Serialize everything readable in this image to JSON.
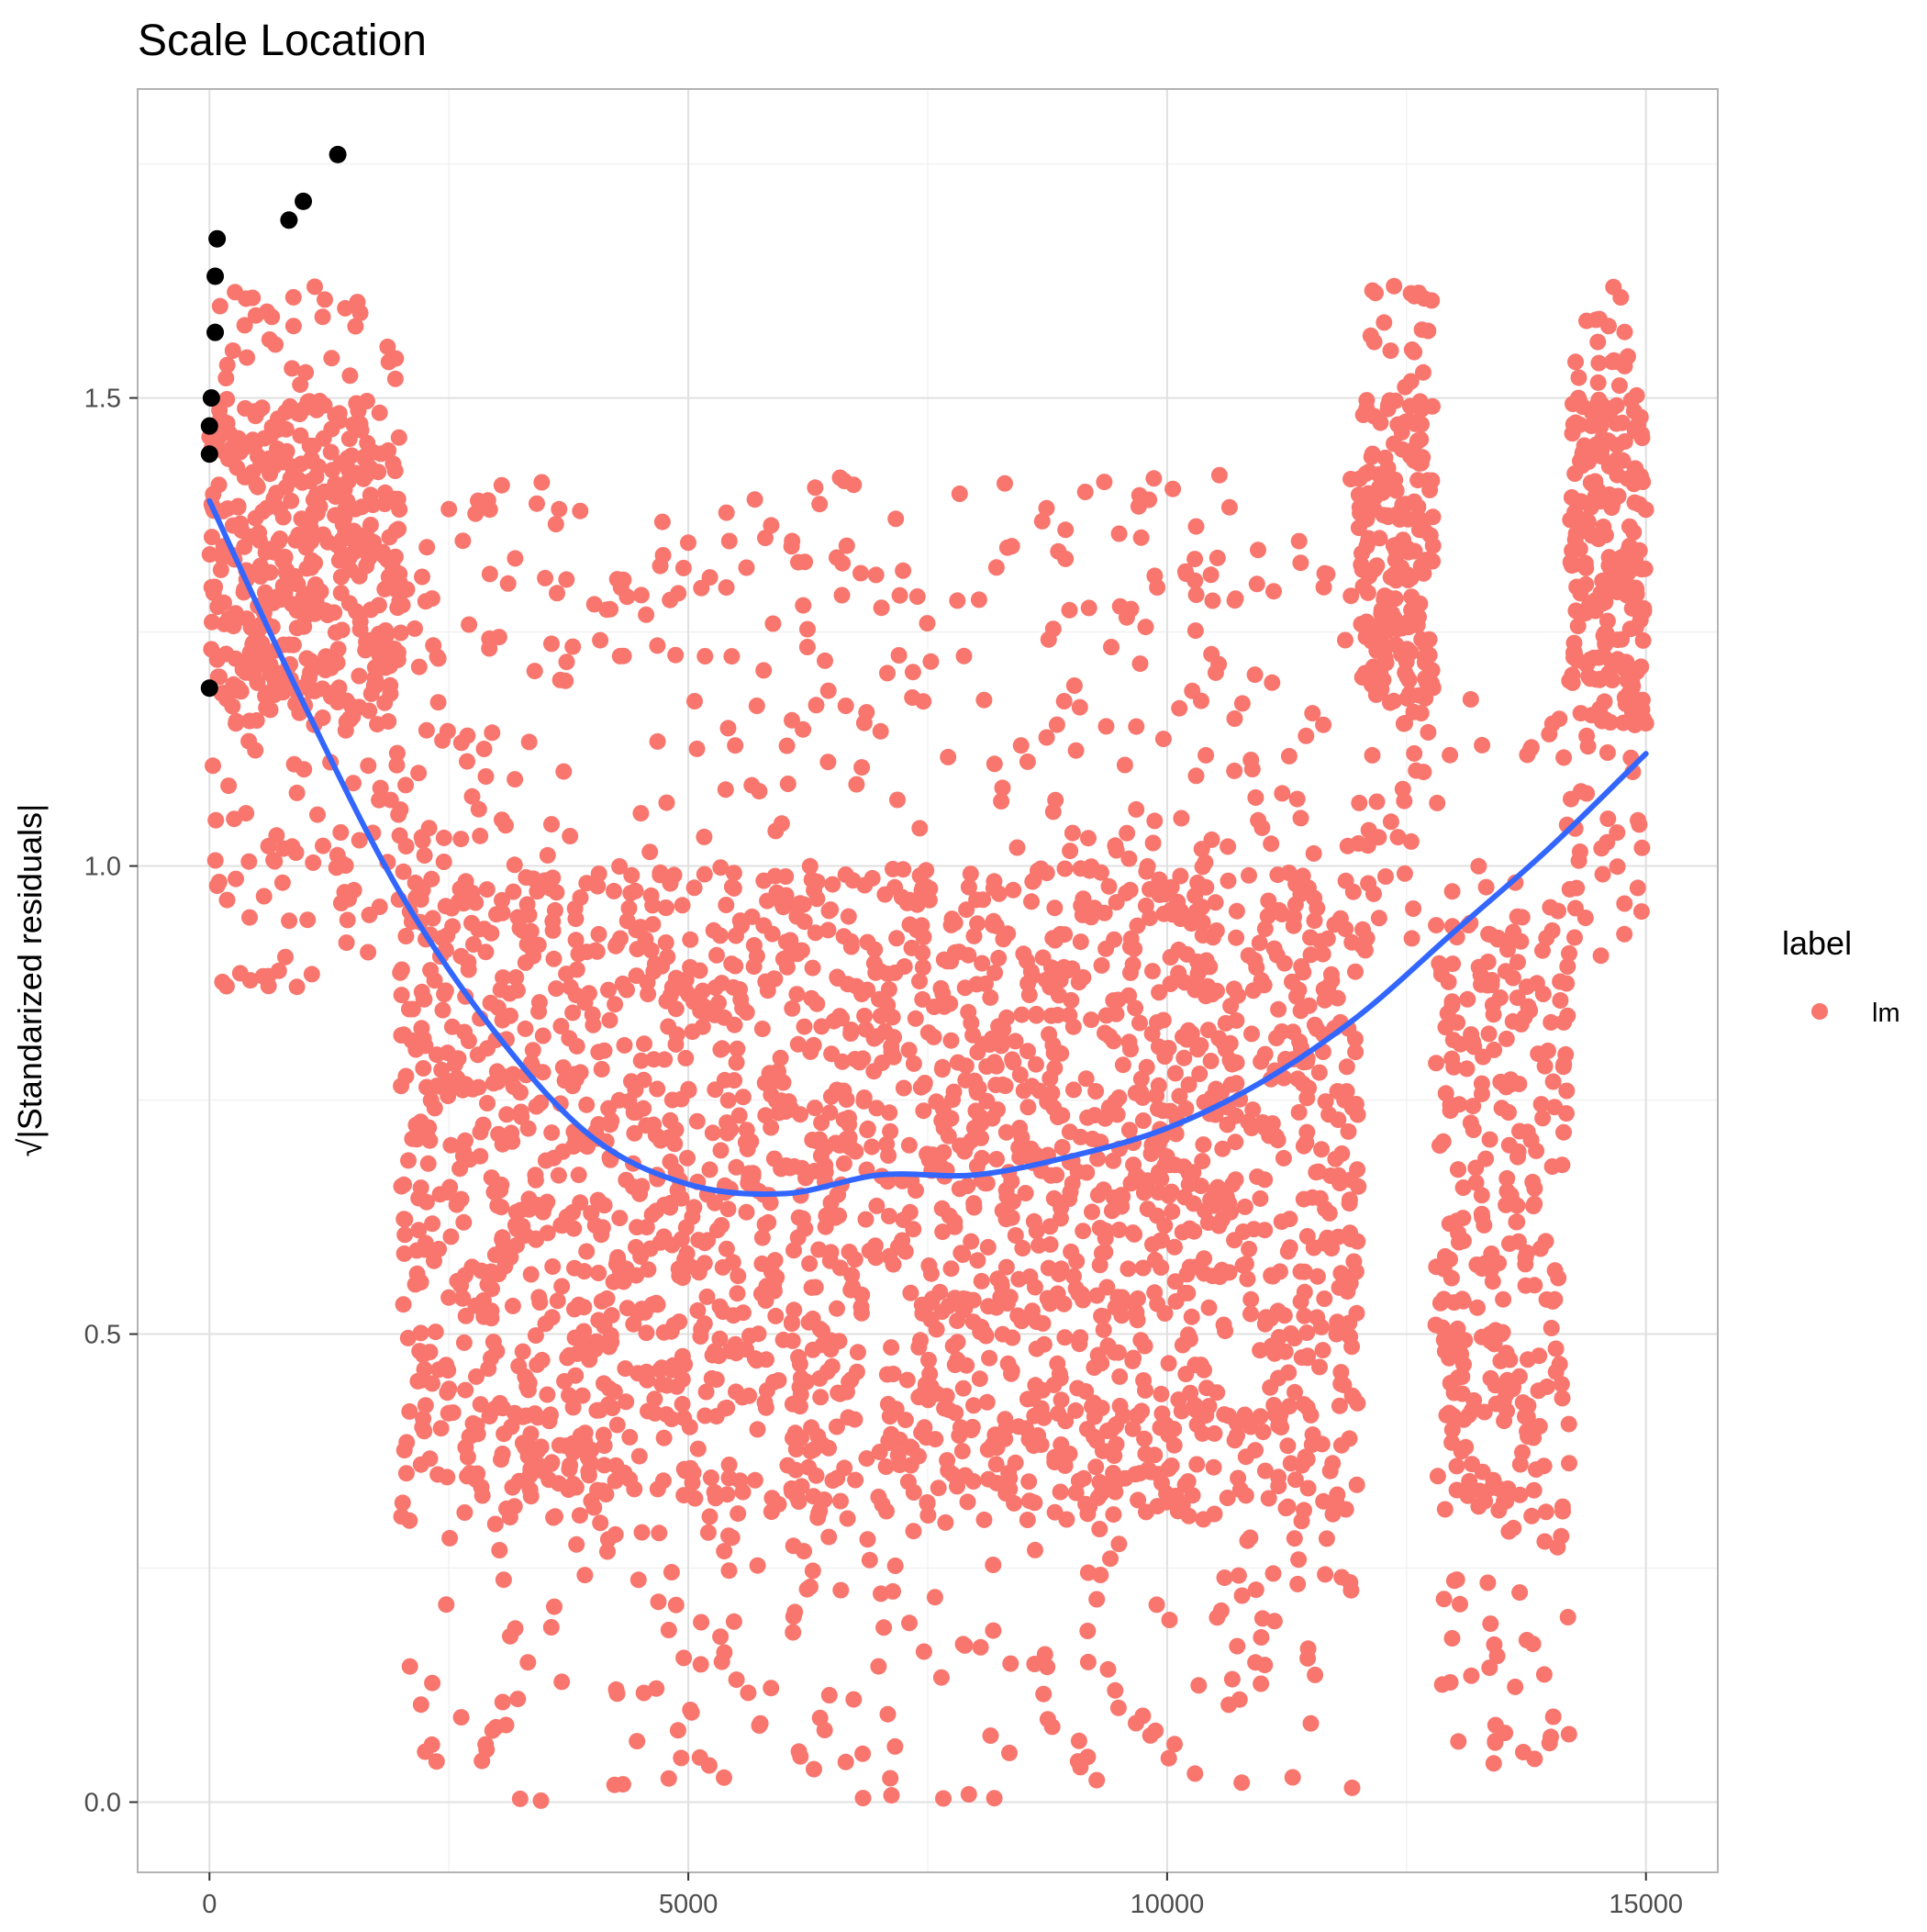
{
  "chart_data": {
    "type": "scatter",
    "title": "Scale Location",
    "xlabel": "",
    "ylabel": "√|Standarized residuals|",
    "xlim": [
      -750,
      15750
    ],
    "ylim": [
      -0.075,
      1.83
    ],
    "x_ticks": [
      0,
      5000,
      10000,
      15000
    ],
    "x_tick_labels": [
      "0",
      "5000",
      "10000",
      "15000"
    ],
    "y_ticks": [
      0.0,
      0.5,
      1.0,
      1.5
    ],
    "y_tick_labels": [
      "0.0",
      "0.5",
      "1.0",
      "1.5"
    ],
    "grid": true,
    "legend": {
      "title": "label",
      "placement": "right",
      "entries": [
        {
          "label": "lm",
          "color": "#F8766D"
        }
      ]
    },
    "colors": {
      "points": "#F8766D",
      "highlighted": "#000000",
      "smooth": "#3366FF"
    },
    "clusters": [
      {
        "x_range": [
          0,
          2000
        ],
        "y_range": [
          0.87,
          1.62
        ],
        "count": 520,
        "dense_y": [
          1.15,
          1.5
        ]
      },
      {
        "x_range": [
          2000,
          12000
        ],
        "y_range": [
          0.0,
          1.42
        ],
        "count": 2700,
        "dense_y": [
          0.3,
          1.0
        ]
      },
      {
        "x_range": [
          12000,
          12800
        ],
        "y_range": [
          0.9,
          1.62
        ],
        "count": 230,
        "dense_y": [
          1.15,
          1.5
        ]
      },
      {
        "x_range": [
          12800,
          14200
        ],
        "y_range": [
          0.04,
          1.18
        ],
        "count": 330,
        "dense_y": [
          0.3,
          0.95
        ]
      },
      {
        "x_range": [
          14200,
          15000
        ],
        "y_range": [
          0.9,
          1.62
        ],
        "count": 260,
        "dense_y": [
          1.15,
          1.5
        ]
      }
    ],
    "highlighted_points": [
      {
        "x": 0,
        "y": 1.19
      },
      {
        "x": 0,
        "y": 1.44
      },
      {
        "x": 0,
        "y": 1.47
      },
      {
        "x": 20,
        "y": 1.5
      },
      {
        "x": 60,
        "y": 1.57
      },
      {
        "x": 60,
        "y": 1.63
      },
      {
        "x": 80,
        "y": 1.67
      },
      {
        "x": 830,
        "y": 1.69
      },
      {
        "x": 980,
        "y": 1.71
      },
      {
        "x": 1340,
        "y": 1.76
      }
    ],
    "smooth_line": {
      "x": [
        0,
        1000,
        2000,
        3000,
        4000,
        5000,
        6000,
        7000,
        8000,
        9000,
        10000,
        11000,
        12000,
        13000,
        14000,
        15000
      ],
      "y": [
        1.39,
        1.17,
        0.97,
        0.82,
        0.71,
        0.66,
        0.65,
        0.67,
        0.67,
        0.69,
        0.72,
        0.77,
        0.84,
        0.93,
        1.02,
        1.12
      ]
    }
  }
}
